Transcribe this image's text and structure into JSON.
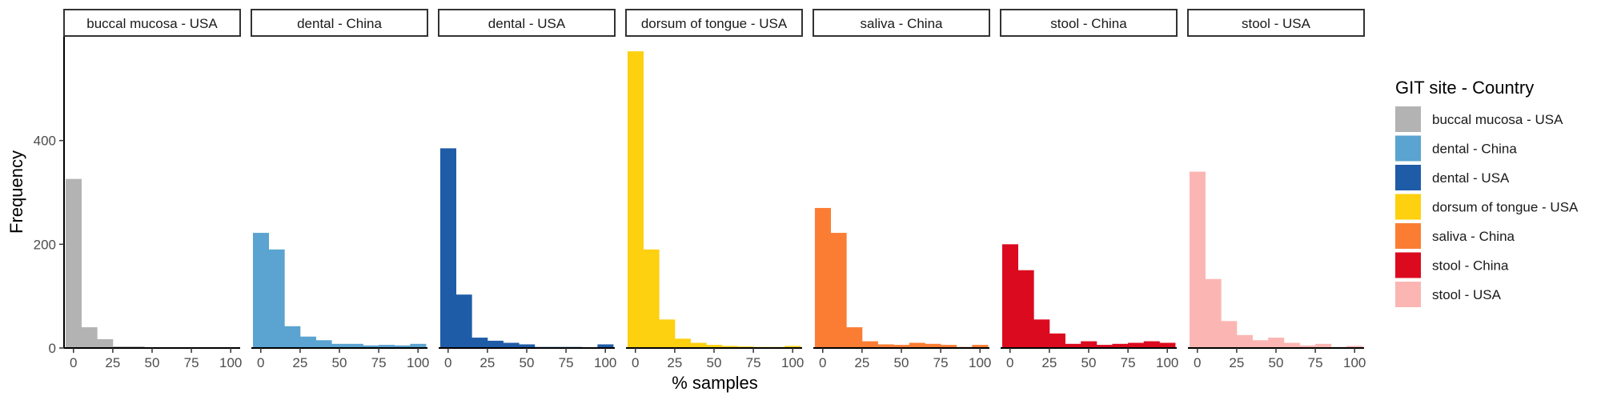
{
  "chart_data": {
    "type": "bar",
    "xlabel": "% samples",
    "ylabel": "Frequency",
    "x_ticks": [
      0,
      25,
      50,
      75,
      100
    ],
    "y_ticks": [
      0,
      200,
      400
    ],
    "ylim": [
      0,
      600
    ],
    "xlim": [
      -6,
      106
    ],
    "bin_width": 10,
    "bin_centers": [
      0,
      10,
      20,
      30,
      40,
      50,
      60,
      70,
      80,
      90,
      100
    ],
    "legend_title": "GIT site - Country",
    "legend_position": "right",
    "grid": false,
    "panels": [
      {
        "name": "buccal mucosa - USA",
        "color": "#b3b3b3",
        "values": [
          326,
          40,
          17,
          3,
          3,
          1,
          0,
          1,
          0,
          1,
          0
        ]
      },
      {
        "name": "dental - China",
        "color": "#5ba3d0",
        "values": [
          222,
          190,
          42,
          22,
          15,
          8,
          8,
          5,
          6,
          5,
          8
        ]
      },
      {
        "name": "dental - USA",
        "color": "#1f5ca8",
        "values": [
          385,
          103,
          20,
          14,
          10,
          7,
          2,
          2,
          2,
          1,
          7
        ]
      },
      {
        "name": "dorsum of tongue - USA",
        "color": "#fdd010",
        "values": [
          572,
          190,
          55,
          18,
          10,
          6,
          4,
          3,
          2,
          2,
          4
        ]
      },
      {
        "name": "saliva - China",
        "color": "#fb7d34",
        "values": [
          270,
          222,
          40,
          13,
          7,
          6,
          10,
          8,
          6,
          2,
          6
        ]
      },
      {
        "name": "stool - China",
        "color": "#dc0a1e",
        "values": [
          200,
          150,
          55,
          28,
          8,
          13,
          6,
          8,
          10,
          13,
          10
        ]
      },
      {
        "name": "stool - USA",
        "color": "#fbb6b4",
        "values": [
          340,
          133,
          52,
          25,
          15,
          20,
          10,
          5,
          8,
          2,
          4
        ]
      }
    ]
  }
}
